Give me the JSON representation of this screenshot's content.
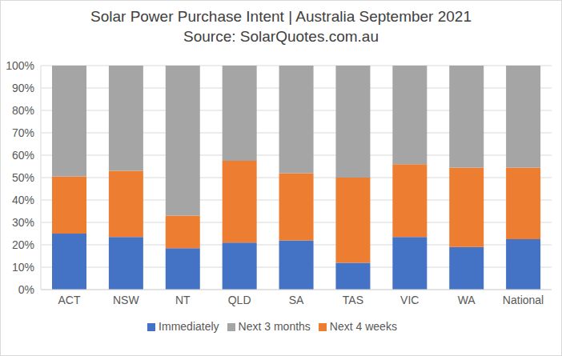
{
  "chart_data": {
    "type": "bar",
    "title": "Solar Power Purchase Intent | Australia September 2021",
    "subtitle": "Source: SolarQuotes.com.au",
    "categories": [
      "ACT",
      "NSW",
      "NT",
      "QLD",
      "SA",
      "TAS",
      "VIC",
      "WA",
      "National"
    ],
    "series": [
      {
        "name": "Immediately",
        "color": "#4472c4",
        "values": [
          25,
          23.5,
          18.5,
          21,
          22,
          12,
          23.5,
          19,
          22.5
        ]
      },
      {
        "name": "Next 4 weeks",
        "color": "#ed7d31",
        "values": [
          25.5,
          29.5,
          14.5,
          36.5,
          30,
          38,
          32.5,
          35.5,
          32
        ]
      },
      {
        "name": "Next 3 months",
        "color": "#a5a5a5",
        "values": [
          49.5,
          47,
          67,
          42.5,
          48,
          50,
          44,
          45.5,
          45.5
        ]
      }
    ],
    "stacked": true,
    "ylim": [
      0,
      100
    ],
    "yticks": [
      {
        "value": 0,
        "label": "0%"
      },
      {
        "value": 10,
        "label": "10%"
      },
      {
        "value": 20,
        "label": "20%"
      },
      {
        "value": 30,
        "label": "30%"
      },
      {
        "value": 40,
        "label": "40%"
      },
      {
        "value": 50,
        "label": "50%"
      },
      {
        "value": 60,
        "label": "60%"
      },
      {
        "value": 70,
        "label": "70%"
      },
      {
        "value": 80,
        "label": "80%"
      },
      {
        "value": 90,
        "label": "90%"
      },
      {
        "value": 100,
        "label": "100%"
      }
    ],
    "grid": true,
    "legend": "bottom"
  }
}
